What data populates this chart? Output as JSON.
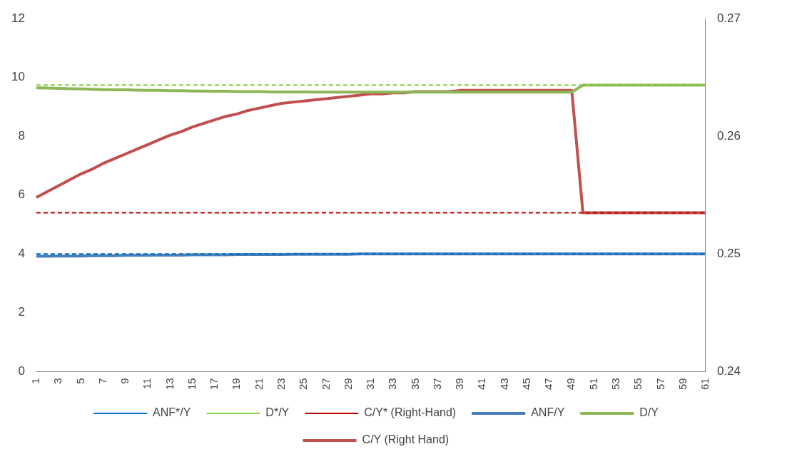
{
  "chart_data": {
    "type": "line",
    "categories": [
      "1",
      null,
      "3",
      null,
      "5",
      null,
      "7",
      null,
      "9",
      null,
      "11",
      null,
      "13",
      null,
      "15",
      null,
      "17",
      null,
      "19",
      null,
      "21",
      null,
      "23",
      null,
      "25",
      null,
      "27",
      null,
      "29",
      null,
      "31",
      null,
      "33",
      null,
      "35",
      null,
      "37",
      null,
      "39",
      null,
      "41",
      null,
      "43",
      null,
      "45",
      null,
      "47",
      null,
      "49",
      null,
      "51",
      null,
      "53",
      null,
      "55",
      null,
      "57",
      null,
      "59",
      null,
      "61"
    ],
    "ylim": [
      0,
      12
    ],
    "yticks": [
      0,
      2,
      4,
      6,
      8,
      10,
      12
    ],
    "y2lim": [
      0.24,
      0.27
    ],
    "y2ticks": [
      0.24,
      0.25,
      0.26,
      0.27
    ],
    "grid": false,
    "legend": "bottom",
    "marker": "none",
    "series": [
      {
        "name": "ANF/Y",
        "color": "#4a7ebb",
        "line_style": "solid",
        "values": [
          3.92,
          3.92,
          3.93,
          3.93,
          3.93,
          3.94,
          3.94,
          3.94,
          3.95,
          3.95,
          3.95,
          3.96,
          3.96,
          3.96,
          3.97,
          3.97,
          3.97,
          3.97,
          3.98,
          3.98,
          3.98,
          3.98,
          3.98,
          3.99,
          3.99,
          3.99,
          3.99,
          3.99,
          3.99,
          4,
          4,
          4,
          4,
          4,
          4,
          4,
          4,
          4,
          4,
          4,
          4,
          4,
          4,
          4,
          4,
          4,
          4,
          4,
          4,
          4,
          4,
          4,
          4,
          4,
          4,
          4,
          4,
          4,
          4,
          4,
          4
        ]
      },
      {
        "name": "D/Y",
        "color": "#8db756",
        "line_style": "solid",
        "values": [
          9.65,
          9.64,
          9.63,
          9.62,
          9.61,
          9.6,
          9.59,
          9.58,
          9.58,
          9.57,
          9.56,
          9.56,
          9.55,
          9.55,
          9.54,
          9.54,
          9.53,
          9.53,
          9.52,
          9.52,
          9.52,
          9.51,
          9.51,
          9.51,
          9.51,
          9.5,
          9.5,
          9.5,
          9.5,
          9.5,
          9.5,
          9.5,
          9.5,
          9.5,
          9.5,
          9.5,
          9.5,
          9.5,
          9.5,
          9.5,
          9.5,
          9.5,
          9.5,
          9.5,
          9.5,
          9.5,
          9.5,
          9.5,
          9.5,
          9.74,
          9.74,
          9.74,
          9.74,
          9.74,
          9.74,
          9.74,
          9.74,
          9.74,
          9.74,
          9.74,
          9.74
        ]
      },
      {
        "name": "ANF*/Y",
        "color": "#0070c0",
        "line_style": "dashed",
        "values": [
          4,
          4,
          4,
          4,
          4,
          4,
          4,
          4,
          4,
          4,
          4,
          4,
          4,
          4,
          4,
          4,
          4,
          4,
          4,
          4,
          4,
          4,
          4,
          4,
          4,
          4,
          4,
          4,
          4,
          4,
          4,
          4,
          4,
          4,
          4,
          4,
          4,
          4,
          4,
          4,
          4,
          4,
          4,
          4,
          4,
          4,
          4,
          4,
          4,
          4,
          4,
          4,
          4,
          4,
          4,
          4,
          4,
          4,
          4,
          4,
          4
        ]
      },
      {
        "name": "D*/Y",
        "color": "#92d050",
        "line_style": "dashed",
        "values": [
          9.74,
          9.74,
          9.74,
          9.74,
          9.74,
          9.74,
          9.74,
          9.74,
          9.74,
          9.74,
          9.74,
          9.74,
          9.74,
          9.74,
          9.74,
          9.74,
          9.74,
          9.74,
          9.74,
          9.74,
          9.74,
          9.74,
          9.74,
          9.74,
          9.74,
          9.74,
          9.74,
          9.74,
          9.74,
          9.74,
          9.74,
          9.74,
          9.74,
          9.74,
          9.74,
          9.74,
          9.74,
          9.74,
          9.74,
          9.74,
          9.74,
          9.74,
          9.74,
          9.74,
          9.74,
          9.74,
          9.74,
          9.74,
          9.74,
          9.74,
          9.74,
          9.74,
          9.74,
          9.74,
          9.74,
          9.74,
          9.74,
          9.74,
          9.74,
          9.74,
          9.74
        ]
      },
      {
        "name": "C/Y (Right Hand)",
        "color": "#c0504d",
        "line_style": "solid",
        "axis": "y2",
        "values": [
          0.2548,
          0.2553,
          0.2558,
          0.2563,
          0.2568,
          0.2572,
          0.2577,
          0.2581,
          0.2585,
          0.2589,
          0.2593,
          0.2597,
          0.2601,
          0.2604,
          0.2608,
          0.2611,
          0.2614,
          0.2617,
          0.2619,
          0.2622,
          0.2624,
          0.2626,
          0.2628,
          0.2629,
          0.263,
          0.2631,
          0.2632,
          0.2633,
          0.2634,
          0.2635,
          0.2636,
          0.2636,
          0.2637,
          0.2637,
          0.2638,
          0.2638,
          0.2638,
          0.2638,
          0.2639,
          0.2639,
          0.2639,
          0.2639,
          0.2639,
          0.2639,
          0.2639,
          0.2639,
          0.2639,
          0.2639,
          0.2639,
          0.2535,
          0.2535,
          0.2535,
          0.2535,
          0.2535,
          0.2535,
          0.2535,
          0.2535,
          0.2535,
          0.2535,
          0.2535,
          0.2535
        ]
      },
      {
        "name": "C/Y* (Right-Hand)",
        "color": "#c00000",
        "line_style": "dashed",
        "axis": "y2",
        "values": [
          0.2535,
          0.2535,
          0.2535,
          0.2535,
          0.2535,
          0.2535,
          0.2535,
          0.2535,
          0.2535,
          0.2535,
          0.2535,
          0.2535,
          0.2535,
          0.2535,
          0.2535,
          0.2535,
          0.2535,
          0.2535,
          0.2535,
          0.2535,
          0.2535,
          0.2535,
          0.2535,
          0.2535,
          0.2535,
          0.2535,
          0.2535,
          0.2535,
          0.2535,
          0.2535,
          0.2535,
          0.2535,
          0.2535,
          0.2535,
          0.2535,
          0.2535,
          0.2535,
          0.2535,
          0.2535,
          0.2535,
          0.2535,
          0.2535,
          0.2535,
          0.2535,
          0.2535,
          0.2535,
          0.2535,
          0.2535,
          0.2535,
          0.2535,
          0.2535,
          0.2535,
          0.2535,
          0.2535,
          0.2535,
          0.2535,
          0.2535,
          0.2535,
          0.2535,
          0.2535,
          0.2535
        ]
      }
    ]
  }
}
